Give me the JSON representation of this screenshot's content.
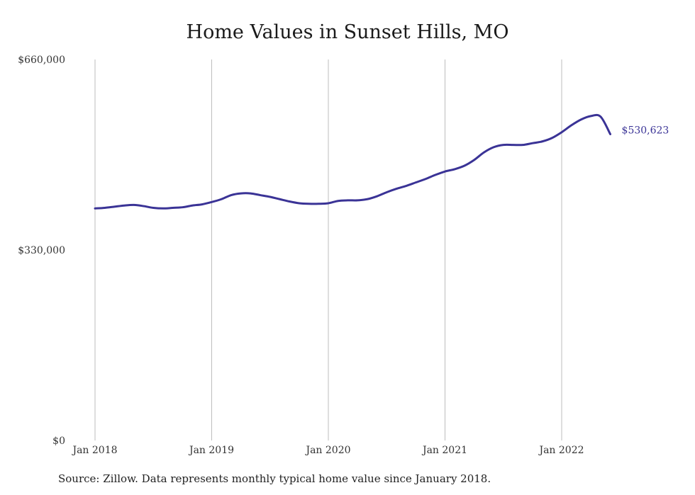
{
  "chart_data": {
    "type": "line",
    "title": "Home Values in Sunset Hills, MO",
    "xlabel": "",
    "ylabel": "",
    "ylim": [
      0,
      660000
    ],
    "y_ticks": [
      {
        "value": 0,
        "label": "$0"
      },
      {
        "value": 330000,
        "label": "$330,000"
      },
      {
        "value": 660000,
        "label": "$660,000"
      }
    ],
    "x_ticks": [
      {
        "value": 0,
        "label": "Jan 2018"
      },
      {
        "value": 12,
        "label": "Jan 2019"
      },
      {
        "value": 24,
        "label": "Jan 2020"
      },
      {
        "value": 36,
        "label": "Jan 2021"
      },
      {
        "value": 48,
        "label": "Jan 2022"
      }
    ],
    "xlim": [
      0,
      54
    ],
    "grid": "vertical",
    "line_color": "#3a3396",
    "series": [
      {
        "values": [
          402000,
          403000,
          405000,
          407000,
          408000,
          406000,
          403000,
          402000,
          403000,
          404000,
          407000,
          409000,
          413000,
          418000,
          425000,
          428000,
          428000,
          425000,
          422000,
          418000,
          414000,
          411000,
          410000,
          410000,
          411000,
          415000,
          416000,
          416000,
          418000,
          423000,
          430000,
          436000,
          441000,
          447000,
          453000,
          460000,
          466000,
          470000,
          476000,
          486000,
          499000,
          508000,
          512000,
          512000,
          512000,
          515000,
          518000,
          524000,
          534000,
          546000,
          556000,
          562000,
          561000,
          530623
        ],
        "end_label": "$530,623"
      }
    ]
  },
  "footer": {
    "source": "Source: Zillow. Data represents monthly typical home value since January 2018."
  }
}
